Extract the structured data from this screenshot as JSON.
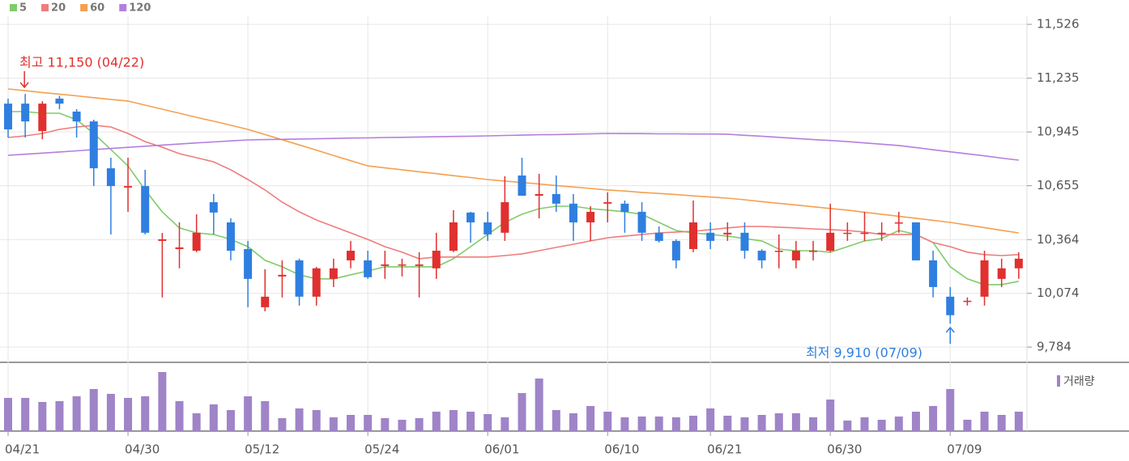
{
  "chart_data": {
    "type": "candlestick",
    "categories": [
      "04/21",
      null,
      null,
      null,
      null,
      null,
      null,
      "04/30",
      null,
      null,
      null,
      null,
      null,
      null,
      "05/12",
      null,
      null,
      null,
      null,
      null,
      null,
      "05/24",
      null,
      null,
      null,
      null,
      null,
      null,
      "06/01",
      null,
      null,
      null,
      null,
      null,
      null,
      "06/10",
      null,
      null,
      null,
      null,
      null,
      "06/21",
      null,
      null,
      null,
      null,
      null,
      null,
      "06/30",
      null,
      null,
      null,
      null,
      null,
      null,
      "07/09",
      null,
      null,
      null,
      null
    ],
    "open": [
      11098,
      11098,
      10950,
      11125,
      11055,
      11002,
      10749,
      10645,
      10653,
      10357,
      10313,
      10304,
      10566,
      10457,
      10313,
      9999,
      10165,
      10252,
      10056,
      10152,
      10252,
      10252,
      10222,
      10226,
      10222,
      10209,
      10304,
      10510,
      10457,
      10401,
      10710,
      10601,
      10610,
      10558,
      10457,
      10558,
      10558,
      10514,
      10401,
      10357,
      10313,
      10401,
      10392,
      10401,
      10304,
      10300,
      10252,
      10300,
      10304,
      10396,
      10396,
      10396,
      10453,
      10457,
      10252,
      10056,
      10030,
      10056,
      10152,
      10209
    ],
    "high": [
      11125,
      11150,
      11111,
      11140,
      11068,
      11011,
      10806,
      10806,
      10741,
      10400,
      10457,
      10501,
      10610,
      10479,
      10357,
      10204,
      10252,
      10261,
      10217,
      10261,
      10357,
      10304,
      10304,
      10261,
      10296,
      10401,
      10523,
      10514,
      10514,
      10706,
      10806,
      10719,
      10710,
      10610,
      10544,
      10619,
      10575,
      10566,
      10435,
      10366,
      10575,
      10457,
      10457,
      10457,
      10313,
      10392,
      10357,
      10357,
      10558,
      10457,
      10514,
      10457,
      10514,
      10457,
      10304,
      10108,
      10052,
      10304,
      10261,
      10296
    ],
    "low": [
      10915,
      10915,
      10906,
      11068,
      10915,
      10653,
      10392,
      10514,
      10392,
      10052,
      10209,
      10296,
      10392,
      10252,
      9999,
      9977,
      10052,
      10008,
      10008,
      10108,
      10209,
      10152,
      10152,
      10165,
      10052,
      10152,
      10296,
      10348,
      10357,
      10357,
      10601,
      10479,
      10514,
      10357,
      10357,
      10457,
      10401,
      10357,
      10348,
      10209,
      10296,
      10313,
      10357,
      10261,
      10209,
      10209,
      10209,
      10252,
      10296,
      10357,
      10357,
      10357,
      10401,
      10252,
      10052,
      9910,
      10008,
      10008,
      10108,
      10152
    ],
    "close": [
      10959,
      11002,
      11098,
      11098,
      11002,
      10749,
      10653,
      10653,
      10401,
      10366,
      10322,
      10401,
      10510,
      10304,
      10152,
      10056,
      10174,
      10056,
      10209,
      10209,
      10304,
      10161,
      10230,
      10230,
      10230,
      10304,
      10457,
      10457,
      10392,
      10566,
      10601,
      10610,
      10558,
      10457,
      10514,
      10566,
      10514,
      10401,
      10357,
      10252,
      10457,
      10357,
      10401,
      10304,
      10252,
      10304,
      10304,
      10304,
      10401,
      10401,
      10401,
      10401,
      10457,
      10252,
      10108,
      9956,
      10034,
      10252,
      10209,
      10261
    ],
    "up_color": "#e0302f",
    "down_color": "#2f7fe0",
    "series": [
      {
        "name": "5",
        "color": "#7fcc6a",
        "values": [
          11055,
          11055,
          11046,
          11046,
          11011,
          10937,
          10850,
          10762,
          10632,
          10514,
          10427,
          10400,
          10392,
          10365,
          10326,
          10252,
          10217,
          10174,
          10152,
          10152,
          10174,
          10195,
          10217,
          10217,
          10217,
          10217,
          10261,
          10326,
          10392,
          10457,
          10501,
          10531,
          10544,
          10544,
          10531,
          10523,
          10514,
          10501,
          10457,
          10413,
          10400,
          10392,
          10383,
          10370,
          10357,
          10313,
          10304,
          10304,
          10296,
          10326,
          10357,
          10370,
          10413,
          10392,
          10348,
          10217,
          10152,
          10121,
          10121,
          10139
        ]
      },
      {
        "name": "20",
        "color": "#ef7c7c",
        "values": [
          10915,
          10924,
          10937,
          10959,
          10972,
          10981,
          10972,
          10937,
          10893,
          10863,
          10828,
          10806,
          10784,
          10741,
          10688,
          10632,
          10566,
          10514,
          10470,
          10435,
          10400,
          10365,
          10326,
          10296,
          10261,
          10270,
          10270,
          10270,
          10270,
          10278,
          10287,
          10304,
          10322,
          10339,
          10357,
          10374,
          10383,
          10392,
          10400,
          10405,
          10409,
          10418,
          10427,
          10435,
          10435,
          10431,
          10427,
          10422,
          10418,
          10413,
          10405,
          10392,
          10392,
          10392,
          10348,
          10326,
          10296,
          10283,
          10278,
          10283
        ]
      },
      {
        "name": "60",
        "color": "#f4a050",
        "values": [
          11177,
          11168,
          11158,
          11149,
          11140,
          11130,
          11121,
          11112,
          11090,
          11068,
          11046,
          11024,
          11003,
          10981,
          10959,
          10931,
          10903,
          10875,
          10847,
          10818,
          10790,
          10762,
          10751,
          10741,
          10730,
          10720,
          10709,
          10699,
          10688,
          10680,
          10672,
          10664,
          10656,
          10648,
          10640,
          10632,
          10626,
          10619,
          10613,
          10607,
          10600,
          10594,
          10588,
          10579,
          10569,
          10560,
          10551,
          10541,
          10532,
          10523,
          10512,
          10501,
          10490,
          10479,
          10468,
          10457,
          10443,
          10429,
          10414,
          10400
        ]
      },
      {
        "name": "120",
        "color": "#b47ede",
        "values": [
          10819,
          10825,
          10831,
          10837,
          10843,
          10850,
          10856,
          10862,
          10868,
          10874,
          10880,
          10886,
          10891,
          10897,
          10902,
          10904,
          10905,
          10907,
          10908,
          10910,
          10912,
          10913,
          10915,
          10916,
          10918,
          10919,
          10921,
          10922,
          10924,
          10926,
          10928,
          10930,
          10931,
          10933,
          10935,
          10937,
          10936,
          10936,
          10935,
          10935,
          10934,
          10934,
          10933,
          10927,
          10922,
          10916,
          10910,
          10904,
          10899,
          10893,
          10886,
          10879,
          10872,
          10861,
          10849,
          10838,
          10827,
          10816,
          10804,
          10793
        ]
      }
    ],
    "ylim": [
      9706,
      11570
    ],
    "yticks": [
      {
        "value": 11526,
        "label": "11,526"
      },
      {
        "value": 11235,
        "label": "11,235"
      },
      {
        "value": 10945,
        "label": "10,945"
      },
      {
        "value": 10655,
        "label": "10,655"
      },
      {
        "value": 10364,
        "label": "10,364"
      },
      {
        "value": 10074,
        "label": "10,074"
      },
      {
        "value": 9784,
        "label": "9,784"
      }
    ],
    "grid": true,
    "annotations": [
      {
        "text": "최고 11,150 (04/22)",
        "color": "#e0302f"
      },
      {
        "text": "최저 9,910 (07/09)",
        "color": "#2f7fe0"
      }
    ],
    "volume": {
      "name": "거래량",
      "color": "#9f84c8",
      "ylim": [
        0,
        78
      ],
      "values": [
        41,
        41,
        36,
        37,
        43,
        52,
        46,
        41,
        43,
        73,
        37,
        22,
        33,
        26,
        43,
        37,
        16,
        28,
        26,
        17,
        20,
        20,
        16,
        14,
        16,
        24,
        26,
        24,
        21,
        17,
        47,
        65,
        26,
        22,
        31,
        24,
        17,
        18,
        18,
        17,
        19,
        28,
        19,
        17,
        20,
        22,
        22,
        17,
        39,
        13,
        17,
        14,
        18,
        24,
        31,
        52,
        14,
        24,
        20,
        24
      ]
    }
  }
}
